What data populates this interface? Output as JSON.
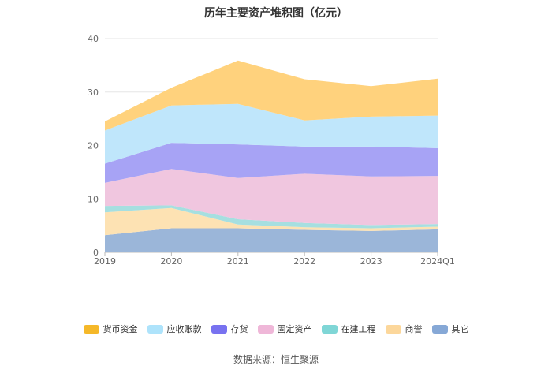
{
  "chart_data": {
    "type": "area",
    "stacked": true,
    "title": "历年主要资产堆积图（亿元）",
    "categories": [
      "2019",
      "2020",
      "2021",
      "2022",
      "2023",
      "2024Q1"
    ],
    "ylim": [
      0,
      40
    ],
    "yticks": [
      0,
      10,
      20,
      30,
      40
    ],
    "grid": true,
    "legend_position": "bottom",
    "series": [
      {
        "name": "其它",
        "values": [
          3.2,
          4.5,
          4.5,
          4.2,
          4.0,
          4.3
        ],
        "color": "#9bb6d9"
      },
      {
        "name": "商誉",
        "values": [
          4.3,
          3.8,
          0.7,
          0.5,
          0.5,
          0.5
        ],
        "color": "#fde2b3"
      },
      {
        "name": "在建工程",
        "values": [
          1.2,
          0.5,
          1.0,
          0.8,
          0.6,
          0.5
        ],
        "color": "#a6dfe0"
      },
      {
        "name": "固定资产",
        "values": [
          4.3,
          6.8,
          7.7,
          9.2,
          9.1,
          9.0
        ],
        "color": "#f0c6df"
      },
      {
        "name": "存货",
        "values": [
          3.6,
          4.9,
          6.3,
          5.1,
          5.6,
          5.2
        ],
        "color": "#a7a3f5"
      },
      {
        "name": "应收账款",
        "values": [
          6.2,
          7.0,
          7.6,
          4.9,
          5.6,
          6.1
        ],
        "color": "#bfe6fb"
      },
      {
        "name": "货币资金",
        "values": [
          1.7,
          3.3,
          8.1,
          7.7,
          5.7,
          6.9
        ],
        "color": "#ffd27d"
      }
    ],
    "legend": [
      {
        "name": "货币资金",
        "color": "#f5b829"
      },
      {
        "name": "应收账款",
        "color": "#aee3fb"
      },
      {
        "name": "存货",
        "color": "#7872f0"
      },
      {
        "name": "固定资产",
        "color": "#efb7d8"
      },
      {
        "name": "在建工程",
        "color": "#7fd6d6"
      },
      {
        "name": "商誉",
        "color": "#fcd79b"
      },
      {
        "name": "其它",
        "color": "#86a8d6"
      }
    ]
  },
  "source_text": "数据来源：恒生聚源"
}
